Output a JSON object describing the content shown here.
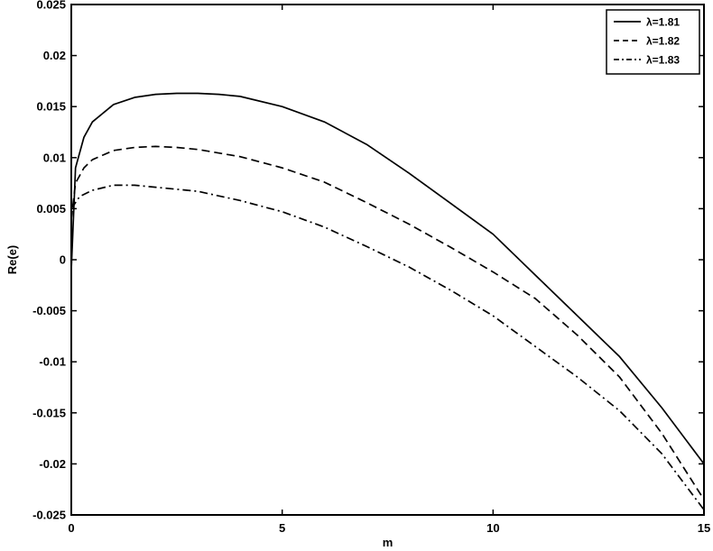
{
  "chart_data": {
    "type": "line",
    "title": "",
    "xlabel": "m",
    "ylabel": "Re(e)",
    "xlim": [
      0,
      15
    ],
    "ylim": [
      -0.025,
      0.025
    ],
    "xticks": [
      0,
      5,
      10,
      15
    ],
    "xtick_labels": [
      "0",
      "5",
      "10",
      "15"
    ],
    "yticks": [
      -0.025,
      -0.02,
      -0.015,
      -0.01,
      -0.005,
      0,
      0.005,
      0.01,
      0.015,
      0.02,
      0.025
    ],
    "ytick_labels": [
      "-0.025",
      "-0.02",
      "-0.015",
      "-0.01",
      "-0.005",
      "0",
      "0.005",
      "0.01",
      "0.015",
      "0.02",
      "0.025"
    ],
    "grid": true,
    "legend_position": "top-right",
    "series": [
      {
        "name": "λ=1.81",
        "style": "solid",
        "color": "#000000",
        "points": [
          [
            0,
            -0.001
          ],
          [
            0.1,
            0.009
          ],
          [
            0.3,
            0.012
          ],
          [
            0.5,
            0.0135
          ],
          [
            1,
            0.0152
          ],
          [
            1.5,
            0.0159
          ],
          [
            2,
            0.0162
          ],
          [
            2.5,
            0.0163
          ],
          [
            3,
            0.0163
          ],
          [
            3.5,
            0.0162
          ],
          [
            4,
            0.016
          ],
          [
            5,
            0.015
          ],
          [
            6,
            0.0135
          ],
          [
            7,
            0.0113
          ],
          [
            8,
            0.0085
          ],
          [
            9,
            0.0055
          ],
          [
            10,
            0.0025
          ],
          [
            11,
            -0.0015
          ],
          [
            12,
            -0.0055
          ],
          [
            13,
            -0.0095
          ],
          [
            14,
            -0.0145
          ],
          [
            15,
            -0.02
          ]
        ]
      },
      {
        "name": "λ=1.82",
        "style": "dashed",
        "color": "#000000",
        "points": [
          [
            0,
            0.004
          ],
          [
            0.1,
            0.0075
          ],
          [
            0.3,
            0.009
          ],
          [
            0.5,
            0.0098
          ],
          [
            1,
            0.0107
          ],
          [
            1.5,
            0.011
          ],
          [
            2,
            0.0111
          ],
          [
            2.5,
            0.011
          ],
          [
            3,
            0.0108
          ],
          [
            4,
            0.0101
          ],
          [
            5,
            0.009
          ],
          [
            6,
            0.0076
          ],
          [
            7,
            0.0056
          ],
          [
            8,
            0.0035
          ],
          [
            9,
            0.0012
          ],
          [
            10,
            -0.0012
          ],
          [
            11,
            -0.0038
          ],
          [
            12,
            -0.0074
          ],
          [
            13,
            -0.0115
          ],
          [
            14,
            -0.017
          ],
          [
            15,
            -0.0235
          ]
        ]
      },
      {
        "name": "λ=1.83",
        "style": "dashdot",
        "color": "#000000",
        "points": [
          [
            0,
            0.005
          ],
          [
            0.2,
            0.0062
          ],
          [
            0.5,
            0.0068
          ],
          [
            1,
            0.0073
          ],
          [
            1.5,
            0.0073
          ],
          [
            2,
            0.0071
          ],
          [
            3,
            0.0067
          ],
          [
            4,
            0.0058
          ],
          [
            5,
            0.0047
          ],
          [
            6,
            0.0032
          ],
          [
            7,
            0.0013
          ],
          [
            8,
            -0.0007
          ],
          [
            9,
            -0.003
          ],
          [
            10,
            -0.0055
          ],
          [
            11,
            -0.0085
          ],
          [
            12,
            -0.0115
          ],
          [
            13,
            -0.0148
          ],
          [
            14,
            -0.019
          ],
          [
            15,
            -0.0245
          ]
        ]
      }
    ]
  }
}
